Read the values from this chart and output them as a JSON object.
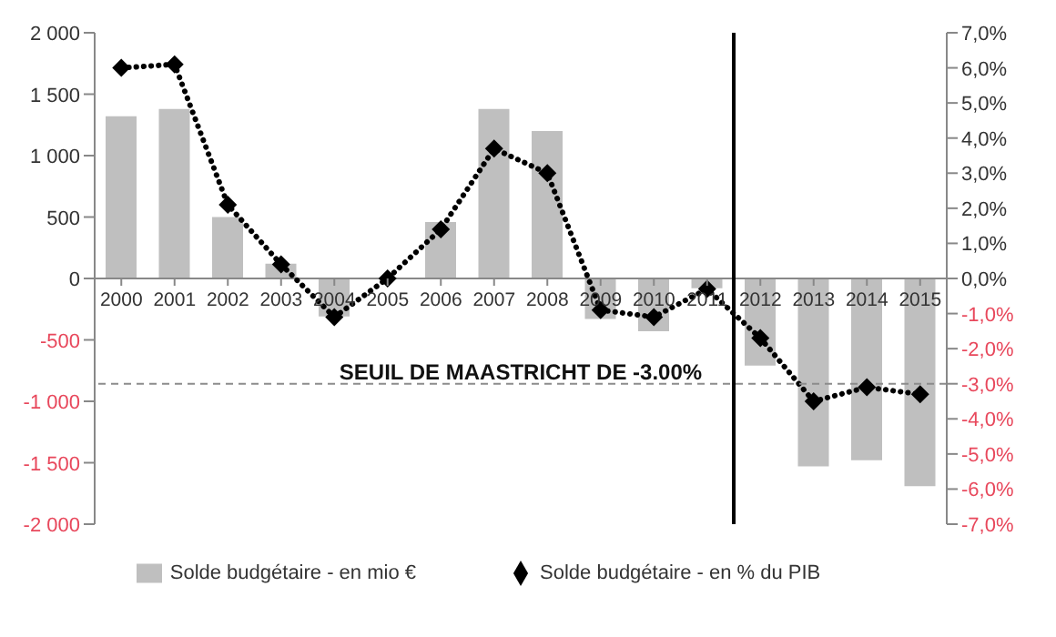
{
  "chart_data": {
    "type": "bar",
    "x": [
      2000,
      2001,
      2002,
      2003,
      2004,
      2005,
      2006,
      2007,
      2008,
      2009,
      2010,
      2011,
      2012,
      2013,
      2014,
      2015
    ],
    "xlim": [
      1999.5,
      2015.5
    ],
    "xticks": [
      2000,
      2001,
      2002,
      2003,
      2004,
      2005,
      2006,
      2007,
      2008,
      2009,
      2010,
      2011,
      2012,
      2013,
      2014,
      2015
    ],
    "series": [
      {
        "name": "Solde budgétaire - en mio €",
        "color": "#bfbfbf",
        "values": [
          1320,
          1380,
          500,
          120,
          -310,
          0,
          460,
          1380,
          1200,
          -330,
          -430,
          -80,
          -710,
          -1530,
          -1480,
          -1690
        ]
      },
      {
        "name": "Solde budgétaire - en % du PIB",
        "type": "line",
        "axis": "y2",
        "color": "#000000",
        "marker": "diamond",
        "line_style": "dotted",
        "values": [
          6.0,
          6.1,
          2.1,
          0.4,
          -1.1,
          0.0,
          1.4,
          3.7,
          3.0,
          -0.9,
          -1.1,
          -0.3,
          -1.7,
          -3.5,
          -3.1,
          -3.3
        ]
      }
    ],
    "ylim": [
      -2000,
      2000
    ],
    "yticks": [
      {
        "value": -2000,
        "label": "-2 000"
      },
      {
        "value": -1500,
        "label": "-1 500"
      },
      {
        "value": -1000,
        "label": "-1 000"
      },
      {
        "value": -500,
        "label": "-500"
      },
      {
        "value": 0,
        "label": "0"
      },
      {
        "value": 500,
        "label": "500"
      },
      {
        "value": 1000,
        "label": "1 000"
      },
      {
        "value": 1500,
        "label": "1 500"
      },
      {
        "value": 2000,
        "label": "2 000"
      }
    ],
    "y2lim": [
      -7,
      7
    ],
    "y2ticks": [
      {
        "value": -7,
        "label": "-7,0%"
      },
      {
        "value": -6,
        "label": "-6,0%"
      },
      {
        "value": -5,
        "label": "-5,0%"
      },
      {
        "value": -4,
        "label": "-4,0%"
      },
      {
        "value": -3,
        "label": "-3,0%"
      },
      {
        "value": -2,
        "label": "-2,0%"
      },
      {
        "value": -1,
        "label": "-1,0%"
      },
      {
        "value": 0,
        "label": "0,0%"
      },
      {
        "value": 1,
        "label": "1,0%"
      },
      {
        "value": 2,
        "label": "2,0%"
      },
      {
        "value": 3,
        "label": "3,0%"
      },
      {
        "value": 4,
        "label": "4,0%"
      },
      {
        "value": 5,
        "label": "5,0%"
      },
      {
        "value": 6,
        "label": "6,0%"
      },
      {
        "value": 7,
        "label": "7,0%"
      }
    ],
    "ref_lines": [
      {
        "axis": "y2",
        "value": -3,
        "label": "SEUIL DE MAASTRICHT DE -3.00%",
        "color": "#8c8c8c",
        "line_style": "dashed"
      },
      {
        "axis": "x",
        "value": 2011.5,
        "color": "#000000",
        "line_style": "solid"
      }
    ],
    "grid": false,
    "legend": "bottom"
  }
}
